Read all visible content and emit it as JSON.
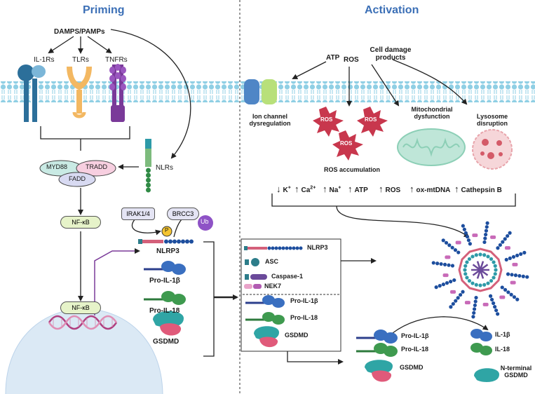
{
  "priming": {
    "title": "Priming",
    "stimulus": "DAMPS/PAMPs",
    "receptors": [
      "IL-1Rs",
      "TLRs",
      "TNFRs"
    ],
    "adaptors": [
      "MYD88",
      "TRADD",
      "FADD"
    ],
    "nfkb": "NF-κB",
    "nfkb_nucleus": "NF-κB",
    "nlrs": "NLRs",
    "kinase": "IRAK1/4",
    "dub": "BRCC3",
    "phospho": "P",
    "ubiquitin": "Ub",
    "sensor": "NLRP3",
    "products": [
      "Pro-IL-1β",
      "Pro-IL-18",
      "GSDMD"
    ]
  },
  "activation": {
    "title": "Activation",
    "triggers": [
      "ATP",
      "ROS",
      "Cell damage products"
    ],
    "events": [
      "Ion channel dysregulation",
      "ROS accumulation",
      "Mitochondrial dysfunction",
      "Lysosome disruption"
    ],
    "ros_label": "ROS",
    "ion_flux": [
      {
        "dir": "down",
        "label": "K",
        "sup": "+"
      },
      {
        "dir": "up",
        "label": "Ca",
        "sup": "2+"
      },
      {
        "dir": "up",
        "label": "Na",
        "sup": "+"
      },
      {
        "dir": "up",
        "label": "ATP",
        "sup": ""
      },
      {
        "dir": "up",
        "label": "ROS",
        "sup": ""
      },
      {
        "dir": "up",
        "label": "ox-mtDNA",
        "sup": ""
      },
      {
        "dir": "up",
        "label": "Cathepsin B",
        "sup": ""
      }
    ],
    "components": [
      "NLRP3",
      "ASC",
      "Caspase-1",
      "NEK7"
    ],
    "precursors": [
      "Pro-IL-1β",
      "Pro-IL-18",
      "GSDMD"
    ],
    "cleaved_inputs": [
      "Pro-IL-1β",
      "Pro-IL-18",
      "GSDMD"
    ],
    "cleaved_outputs": [
      "IL-1β",
      "IL-18",
      "N-terminal GSDMD"
    ]
  }
}
